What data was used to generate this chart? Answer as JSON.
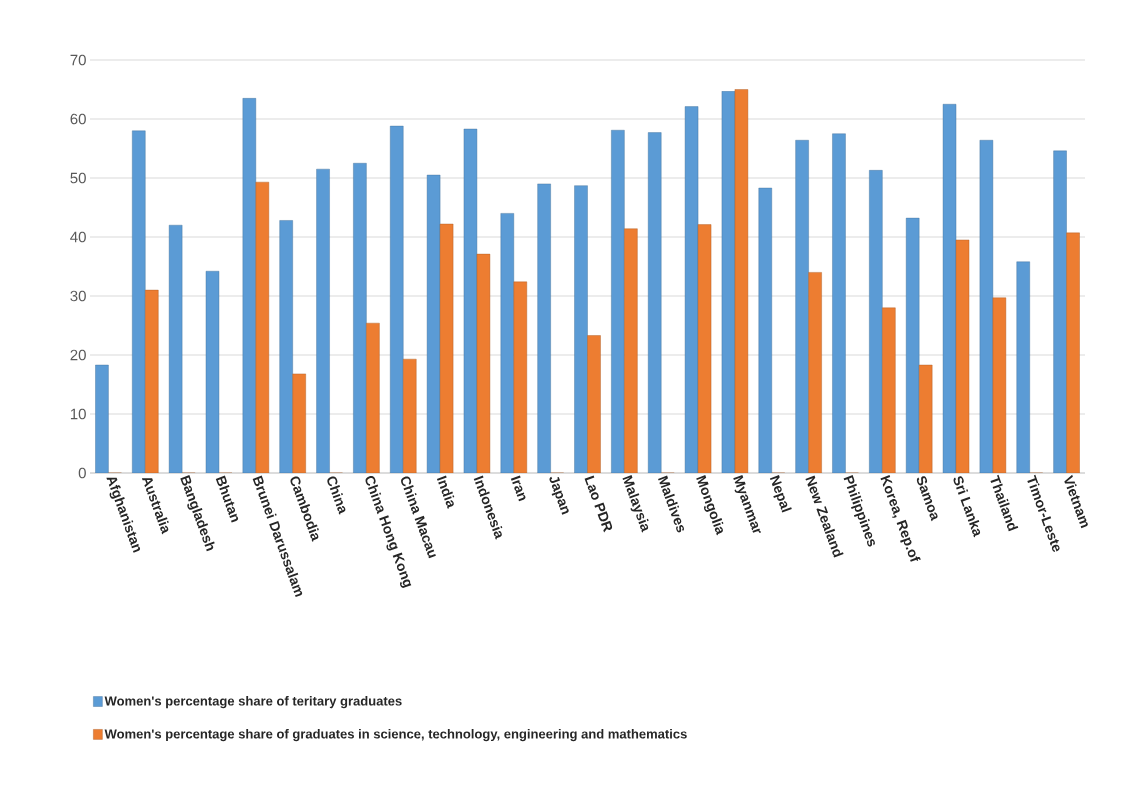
{
  "chart_data": {
    "type": "bar",
    "categories": [
      "Afghanistan",
      "Australia",
      "Bangladesh",
      "Bhutan",
      "Brunei Darussalam",
      "Cambodia",
      "China",
      "China Hong Kong",
      "China Macau",
      "India",
      "Indonesia",
      "Iran",
      "Japan",
      "Lao PDR",
      "Malaysia",
      "Maldives",
      "Mongolia",
      "Myanmar",
      "Nepal",
      "New Zealand",
      "Philippines",
      "Korea, Rep.of",
      "Samoa",
      "Sri Lanka",
      "Thailand",
      "Timor-Leste",
      "Vietnam"
    ],
    "series": [
      {
        "name": "Women's percentage share of teritary graduates",
        "color": "#5b9bd5",
        "values": [
          18.3,
          58,
          42,
          34.2,
          63.5,
          42.8,
          51.5,
          52.5,
          58.8,
          50.5,
          58.3,
          44,
          49,
          48.7,
          58.1,
          57.7,
          62.1,
          64.7,
          48.3,
          56.4,
          57.5,
          51.3,
          43.2,
          62.5,
          56.4,
          35.8,
          54.6
        ]
      },
      {
        "name": "Women's percentage share of graduates in science, technology, engineering and mathematics",
        "color": "#ed7d31",
        "values": [
          0,
          31,
          0,
          0,
          49.3,
          16.8,
          0,
          25.4,
          19.3,
          42.2,
          37.1,
          32.4,
          0,
          23.3,
          41.4,
          0,
          42.1,
          65,
          0,
          34,
          0,
          28,
          18.3,
          39.5,
          29.7,
          0,
          40.7
        ]
      }
    ],
    "ylim": [
      0,
      70
    ],
    "yticks": [
      0,
      10,
      20,
      30,
      40,
      50,
      60,
      70
    ],
    "grid": "y",
    "legend": "bottom"
  }
}
